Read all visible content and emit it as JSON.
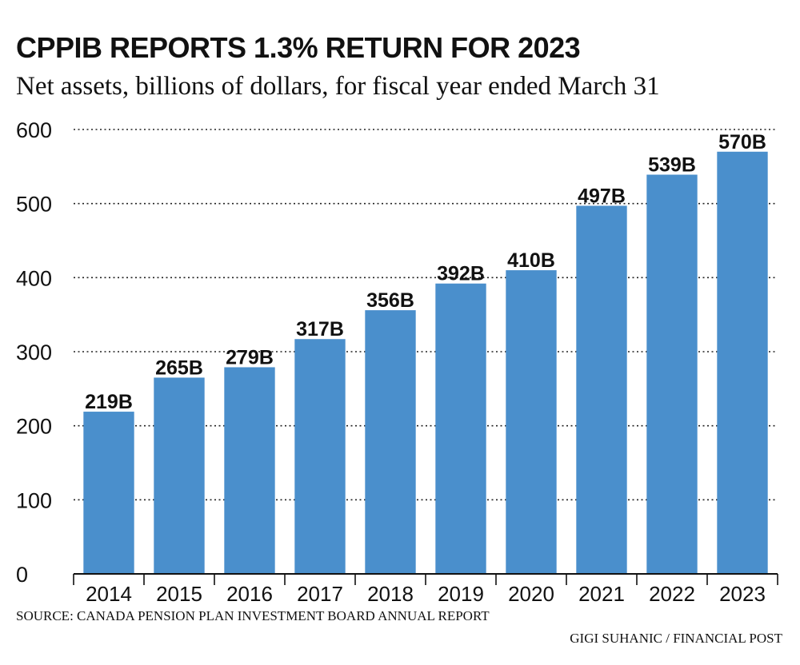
{
  "chart_data": {
    "type": "bar",
    "title": "CPPIB REPORTS 1.3% RETURN FOR 2023",
    "subtitle": "Net assets, billions of dollars, for fiscal year ended March 31",
    "categories": [
      "2014",
      "2015",
      "2016",
      "2017",
      "2018",
      "2019",
      "2020",
      "2021",
      "2022",
      "2023"
    ],
    "values": [
      219,
      265,
      279,
      317,
      356,
      392,
      410,
      497,
      539,
      570
    ],
    "data_labels": [
      "219B",
      "265B",
      "279B",
      "317B",
      "356B",
      "392B",
      "410B",
      "497B",
      "539B",
      "570B"
    ],
    "yticks": [
      "0",
      "100",
      "200",
      "300",
      "400",
      "500",
      "600"
    ],
    "ylim": [
      0,
      600
    ],
    "grid": "horizontal-dotted",
    "bar_color": "#4a8fcc",
    "source": "SOURCE: CANADA PENSION PLAN INVESTMENT BOARD ANNUAL REPORT",
    "credit": "GIGI SUHANIC / FINANCIAL POST"
  }
}
